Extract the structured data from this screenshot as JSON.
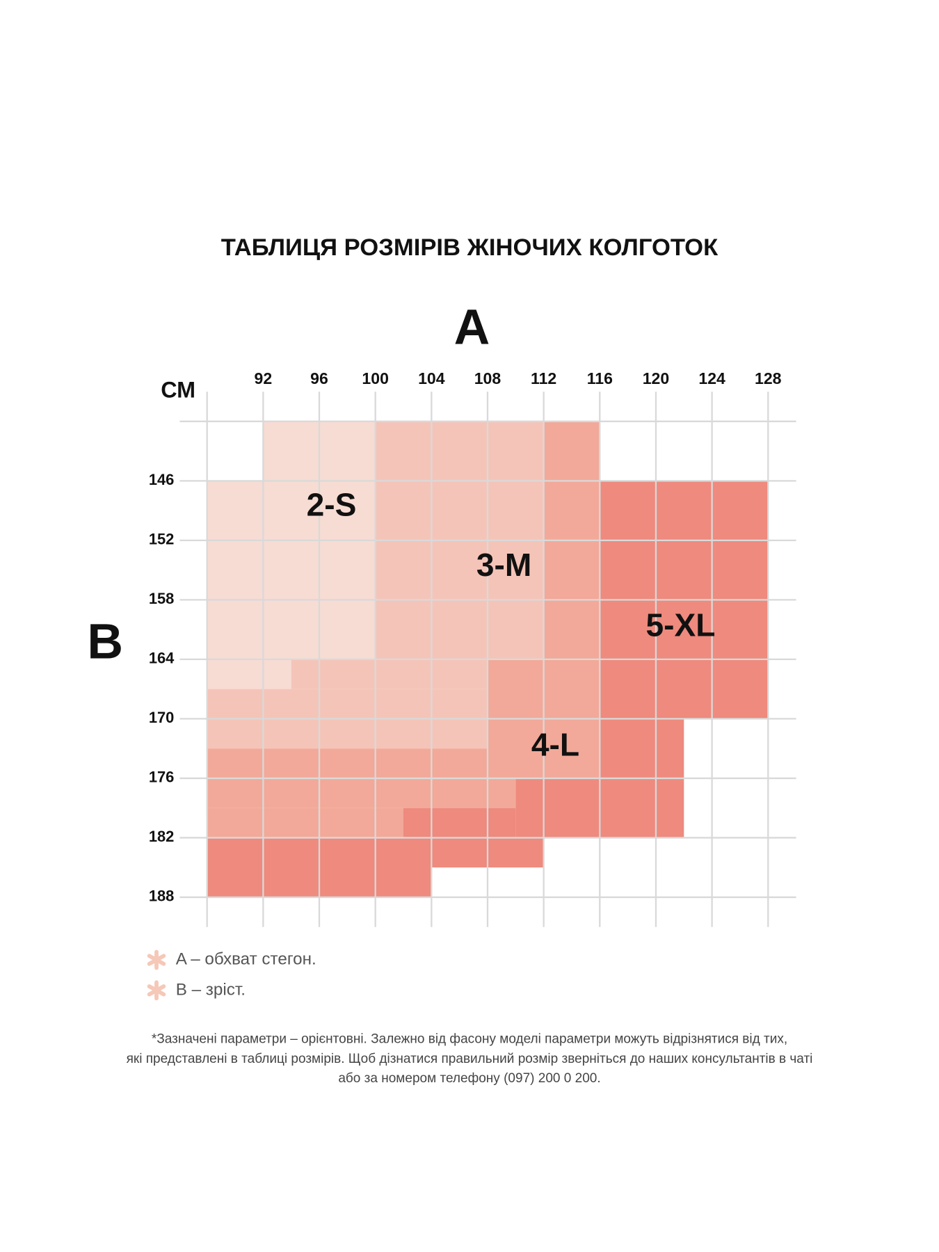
{
  "title": "ТАБЛИЦЯ РОЗМІРІВ ЖІНОЧИХ КОЛГОТОК",
  "x_axis": {
    "label": "A",
    "unit": "СМ",
    "xlim": [
      88,
      130
    ],
    "xticks": [
      92,
      96,
      100,
      104,
      108,
      112,
      116,
      120,
      124,
      128
    ],
    "extra_grid": [
      88
    ]
  },
  "y_axis": {
    "label": "B",
    "ylim": [
      137,
      191
    ],
    "yticks": [
      146,
      152,
      158,
      164,
      170,
      176,
      182,
      188
    ],
    "extra_grid": [
      140
    ]
  },
  "sizes": [
    {
      "name": "2-S",
      "color": "#f7dcd3",
      "areas": [
        [
          92,
          100,
          140,
          146
        ],
        [
          88,
          100,
          146,
          164
        ],
        [
          88,
          94,
          164,
          167
        ]
      ]
    },
    {
      "name": "3-M",
      "color": "#f5c4b8",
      "areas": [
        [
          100,
          112,
          140,
          164
        ],
        [
          94,
          108,
          164,
          167
        ],
        [
          88,
          108,
          167,
          173
        ]
      ]
    },
    {
      "name": "4-L",
      "color": "#f2a999",
      "areas": [
        [
          112,
          116,
          140,
          164
        ],
        [
          108,
          116,
          164,
          176
        ],
        [
          88,
          108,
          173,
          176
        ],
        [
          88,
          110,
          176,
          179
        ],
        [
          88,
          102,
          179,
          182
        ]
      ]
    },
    {
      "name": "5-XL",
      "color": "#ee8a7e",
      "areas": [
        [
          116,
          128,
          146,
          170
        ],
        [
          116,
          122,
          170,
          182
        ],
        [
          110,
          116,
          176,
          182
        ],
        [
          102,
          110,
          179,
          182
        ],
        [
          102,
          112,
          182,
          185
        ],
        [
          88,
          104,
          182,
          188
        ]
      ]
    }
  ],
  "legend": [
    "A – обхват стегон.",
    "B – зріст."
  ],
  "footnote": [
    "*Зазначені параметри – орієнтовні. Залежно від фасону моделі параметри можуть відрізнятися від тих,",
    "які представлені в таблиці розмірів. Щоб дізнатися правильний розмір зверніться до наших консультантів в чаті",
    "або за номером телефону (097) 200 0 200."
  ]
}
